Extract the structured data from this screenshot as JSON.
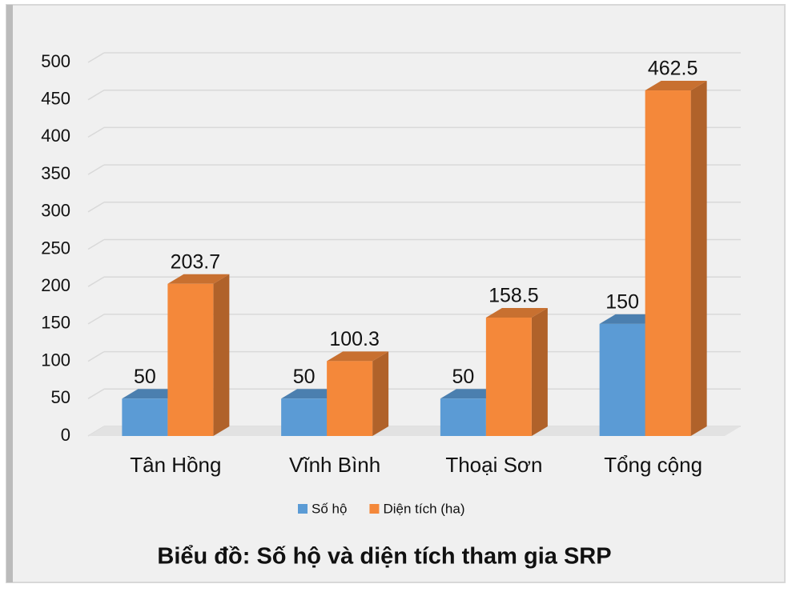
{
  "chart_data": {
    "type": "bar3d",
    "title": "Biểu đồ: Số hộ và diện tích tham gia SRP",
    "categories": [
      "Tân Hồng",
      "Vĩnh Bình",
      "Thoại Sơn",
      "Tổng cộng"
    ],
    "series": [
      {
        "name": "Số hộ",
        "color": "#5b9bd5",
        "values": [
          50,
          50,
          50,
          150
        ]
      },
      {
        "name": "Diện tích (ha)",
        "color": "#f4883a",
        "values": [
          203.7,
          100.3,
          158.5,
          462.5
        ]
      }
    ],
    "ylim": [
      0,
      500
    ],
    "yticks": [
      0,
      50,
      100,
      150,
      200,
      250,
      300,
      350,
      400,
      450,
      500
    ],
    "grid": true,
    "legend": "bottom"
  }
}
